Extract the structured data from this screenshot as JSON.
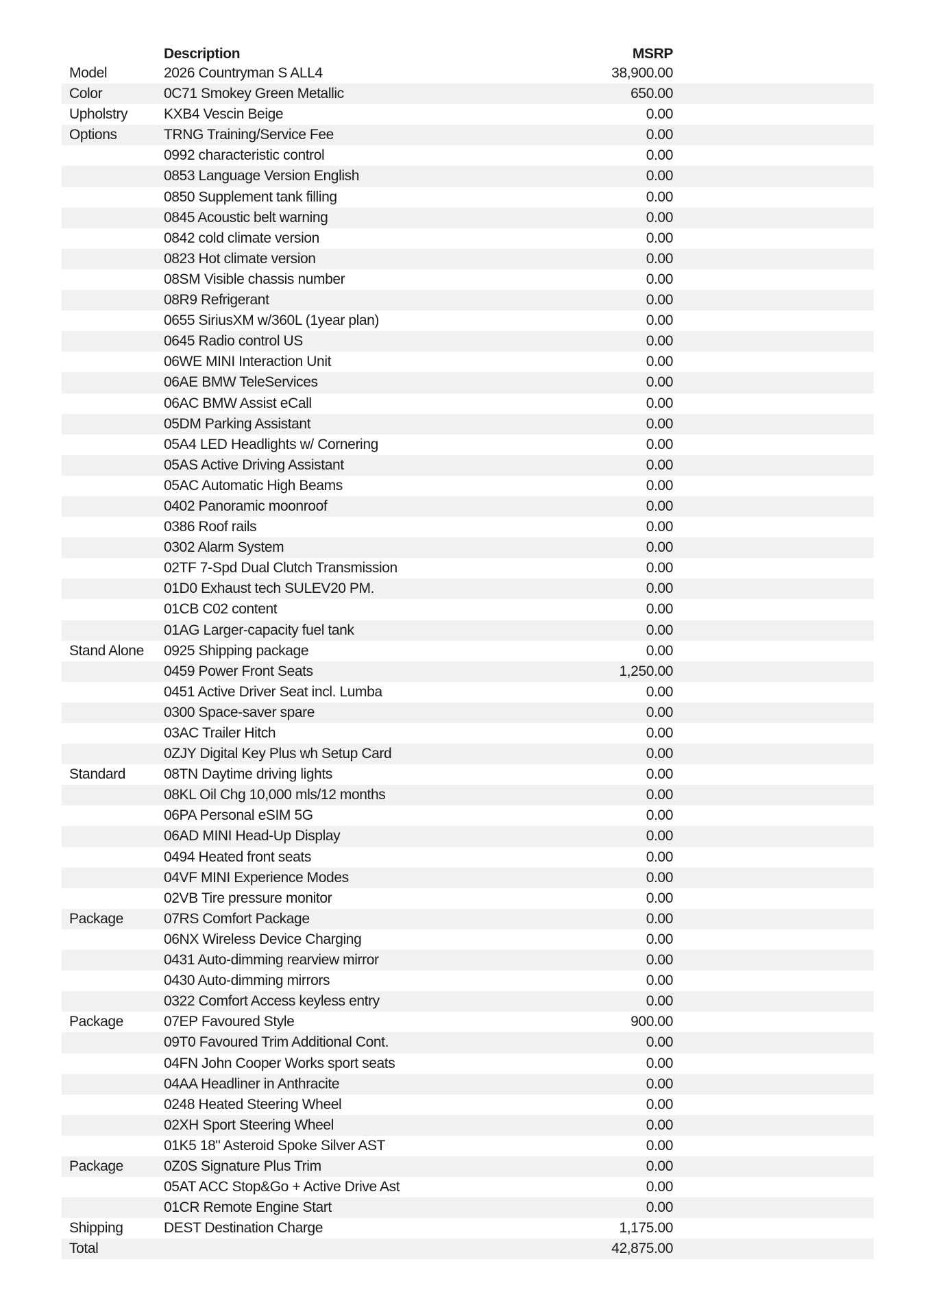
{
  "header": {
    "description": "Description",
    "msrp": "MSRP"
  },
  "rows": [
    {
      "category": "Model",
      "description": "2026 Countryman S ALL4",
      "msrp": "38,900.00"
    },
    {
      "category": "Color",
      "description": "0C71 Smokey Green Metallic",
      "msrp": "650.00"
    },
    {
      "category": "Upholstry",
      "description": "KXB4 Vescin Beige",
      "msrp": "0.00"
    },
    {
      "category": "Options",
      "description": "TRNG Training/Service Fee",
      "msrp": "0.00"
    },
    {
      "category": "",
      "description": "0992 characteristic control",
      "msrp": "0.00"
    },
    {
      "category": "",
      "description": "0853 Language Version English",
      "msrp": "0.00"
    },
    {
      "category": "",
      "description": "0850 Supplement tank filling",
      "msrp": "0.00"
    },
    {
      "category": "",
      "description": "0845 Acoustic belt warning",
      "msrp": "0.00"
    },
    {
      "category": "",
      "description": "0842 cold climate version",
      "msrp": "0.00"
    },
    {
      "category": "",
      "description": "0823 Hot climate version",
      "msrp": "0.00"
    },
    {
      "category": "",
      "description": "08SM Visible chassis number",
      "msrp": "0.00"
    },
    {
      "category": "",
      "description": "08R9 Refrigerant",
      "msrp": "0.00"
    },
    {
      "category": "",
      "description": "0655 SiriusXM w/360L (1year plan)",
      "msrp": "0.00"
    },
    {
      "category": "",
      "description": "0645 Radio control US",
      "msrp": "0.00"
    },
    {
      "category": "",
      "description": "06WE MINI Interaction Unit",
      "msrp": "0.00"
    },
    {
      "category": "",
      "description": "06AE BMW TeleServices",
      "msrp": "0.00"
    },
    {
      "category": "",
      "description": "06AC BMW Assist eCall",
      "msrp": "0.00"
    },
    {
      "category": "",
      "description": "05DM Parking Assistant",
      "msrp": "0.00"
    },
    {
      "category": "",
      "description": "05A4 LED Headlights w/ Cornering",
      "msrp": "0.00"
    },
    {
      "category": "",
      "description": "05AS Active Driving Assistant",
      "msrp": "0.00"
    },
    {
      "category": "",
      "description": "05AC Automatic High Beams",
      "msrp": "0.00"
    },
    {
      "category": "",
      "description": "0402 Panoramic moonroof",
      "msrp": "0.00"
    },
    {
      "category": "",
      "description": "0386 Roof rails",
      "msrp": "0.00"
    },
    {
      "category": "",
      "description": "0302 Alarm System",
      "msrp": "0.00"
    },
    {
      "category": "",
      "description": "02TF 7-Spd Dual Clutch Transmission",
      "msrp": "0.00"
    },
    {
      "category": "",
      "description": "01D0 Exhaust tech SULEV20 PM.",
      "msrp": "0.00"
    },
    {
      "category": "",
      "description": "01CB C02 content",
      "msrp": "0.00"
    },
    {
      "category": "",
      "description": "01AG Larger-capacity fuel tank",
      "msrp": "0.00"
    },
    {
      "category": "Stand Alone",
      "description": "0925 Shipping package",
      "msrp": "0.00"
    },
    {
      "category": "",
      "description": "0459 Power Front Seats",
      "msrp": "1,250.00"
    },
    {
      "category": "",
      "description": "0451 Active Driver Seat incl. Lumba",
      "msrp": "0.00"
    },
    {
      "category": "",
      "description": "0300 Space-saver spare",
      "msrp": "0.00"
    },
    {
      "category": "",
      "description": "03AC Trailer Hitch",
      "msrp": "0.00"
    },
    {
      "category": "",
      "description": "0ZJY Digital Key Plus wh Setup Card",
      "msrp": "0.00"
    },
    {
      "category": "Standard",
      "description": "08TN Daytime driving lights",
      "msrp": "0.00"
    },
    {
      "category": "",
      "description": "08KL Oil Chg 10,000 mls/12 months",
      "msrp": "0.00"
    },
    {
      "category": "",
      "description": "06PA Personal eSIM 5G",
      "msrp": "0.00"
    },
    {
      "category": "",
      "description": "06AD MINI Head-Up Display",
      "msrp": "0.00"
    },
    {
      "category": "",
      "description": "0494 Heated front seats",
      "msrp": "0.00"
    },
    {
      "category": "",
      "description": "04VF MINI Experience Modes",
      "msrp": "0.00"
    },
    {
      "category": "",
      "description": "02VB Tire pressure monitor",
      "msrp": "0.00"
    },
    {
      "category": "Package",
      "description": "07RS Comfort Package",
      "msrp": "0.00"
    },
    {
      "category": "",
      "description": "06NX Wireless Device Charging",
      "msrp": "0.00"
    },
    {
      "category": "",
      "description": "0431 Auto-dimming rearview mirror",
      "msrp": "0.00"
    },
    {
      "category": "",
      "description": "0430 Auto-dimming mirrors",
      "msrp": "0.00"
    },
    {
      "category": "",
      "description": "0322 Comfort Access keyless entry",
      "msrp": "0.00"
    },
    {
      "category": "Package",
      "description": "07EP Favoured Style",
      "msrp": "900.00"
    },
    {
      "category": "",
      "description": "09T0 Favoured Trim Additional Cont.",
      "msrp": "0.00"
    },
    {
      "category": "",
      "description": "04FN John Cooper Works sport seats",
      "msrp": "0.00"
    },
    {
      "category": "",
      "description": "04AA Headliner in Anthracite",
      "msrp": "0.00"
    },
    {
      "category": "",
      "description": "0248 Heated Steering Wheel",
      "msrp": "0.00"
    },
    {
      "category": "",
      "description": "02XH Sport Steering Wheel",
      "msrp": "0.00"
    },
    {
      "category": "",
      "description": "01K5 18\" Asteroid Spoke Silver AST",
      "msrp": "0.00"
    },
    {
      "category": "Package",
      "description": "0Z0S Signature Plus Trim",
      "msrp": "0.00"
    },
    {
      "category": "",
      "description": "05AT ACC Stop&Go + Active Drive Ast",
      "msrp": "0.00"
    },
    {
      "category": "",
      "description": "01CR Remote Engine Start",
      "msrp": "0.00"
    },
    {
      "category": "Shipping",
      "description": "DEST Destination Charge",
      "msrp": "1,175.00"
    },
    {
      "category": "Total",
      "description": "",
      "msrp": "42,875.00"
    }
  ]
}
